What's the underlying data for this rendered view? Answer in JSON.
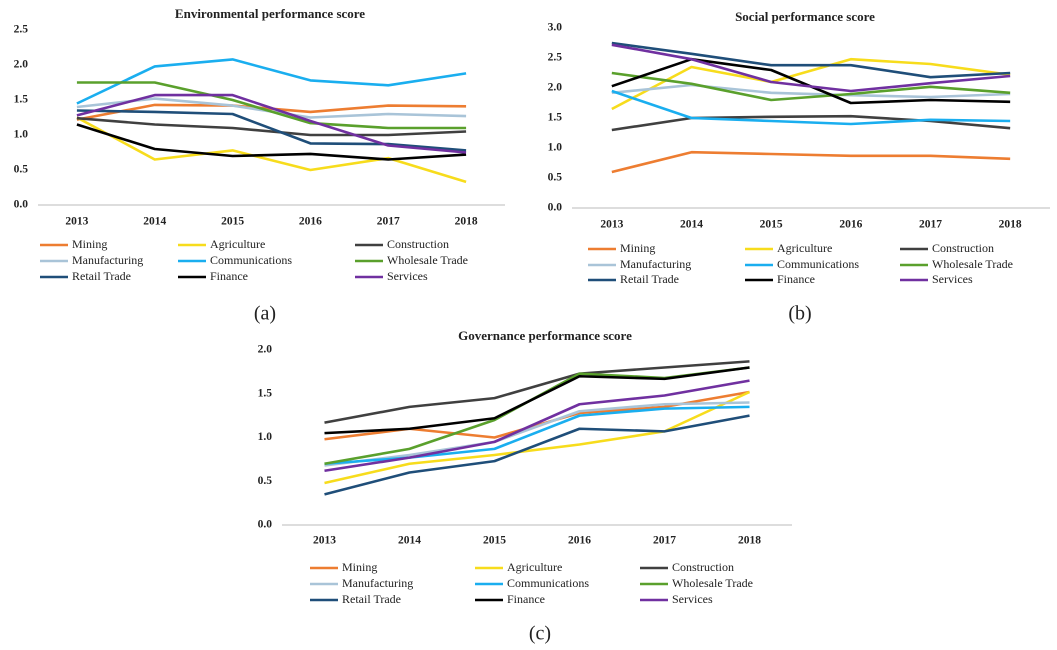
{
  "chart_data": [
    {
      "type": "line",
      "title": "Environmental performance score",
      "caption": "(a)",
      "categories": [
        "2013",
        "2014",
        "2015",
        "2016",
        "2017",
        "2018"
      ],
      "ylim": [
        0,
        2.5
      ],
      "yticks": [
        {
          "value": 0,
          "label": "0.0"
        },
        0.5,
        {
          "value": 1,
          "label": "1.0"
        },
        1.5,
        {
          "value": 2,
          "label": "2.0"
        },
        2.5
      ],
      "grid": false,
      "series": [
        {
          "name": "Mining",
          "color": "#ed7d31",
          "values": [
            1.22,
            1.43,
            1.42,
            1.33,
            1.42,
            1.41
          ]
        },
        {
          "name": "Agriculture",
          "color": "#f7dc1c",
          "values": [
            1.25,
            0.65,
            0.78,
            0.5,
            0.67,
            0.33
          ]
        },
        {
          "name": "Construction",
          "color": "#404040",
          "values": [
            1.24,
            1.15,
            1.1,
            1.0,
            1.0,
            1.05
          ]
        },
        {
          "name": "Manufacturing",
          "color": "#a9c4d8",
          "values": [
            1.4,
            1.52,
            1.42,
            1.25,
            1.3,
            1.27
          ]
        },
        {
          "name": "Communications",
          "color": "#1aaeef",
          "values": [
            1.45,
            1.98,
            2.08,
            1.78,
            1.71,
            1.88
          ]
        },
        {
          "name": "Wholesale Trade",
          "color": "#5aa02c",
          "values": [
            1.75,
            1.75,
            1.5,
            1.17,
            1.1,
            1.1
          ]
        },
        {
          "name": "Retail Trade",
          "color": "#1f4e79",
          "values": [
            1.35,
            1.33,
            1.3,
            0.88,
            0.87,
            0.78
          ]
        },
        {
          "name": "Finance",
          "color": "#000000",
          "values": [
            1.15,
            0.8,
            0.7,
            0.73,
            0.65,
            0.72
          ]
        },
        {
          "name": "Services",
          "color": "#7030a0",
          "values": [
            1.28,
            1.57,
            1.57,
            1.2,
            0.85,
            0.75
          ]
        }
      ]
    },
    {
      "type": "line",
      "title": "Social performance score",
      "caption": "(b)",
      "categories": [
        "2013",
        "2014",
        "2015",
        "2016",
        "2017",
        "2018"
      ],
      "ylim": [
        0,
        3
      ],
      "yticks": [
        {
          "value": 0,
          "label": "0.0"
        },
        0.5,
        {
          "value": 1,
          "label": "1.0"
        },
        1.5,
        {
          "value": 2,
          "label": "2.0"
        },
        2.5,
        {
          "value": 3,
          "label": "3.0"
        }
      ],
      "grid": false,
      "series": [
        {
          "name": "Mining",
          "color": "#ed7d31",
          "values": [
            0.6,
            0.93,
            0.9,
            0.87,
            0.87,
            0.82
          ]
        },
        {
          "name": "Agriculture",
          "color": "#f7dc1c",
          "values": [
            1.65,
            2.35,
            2.1,
            2.48,
            2.4,
            2.22
          ]
        },
        {
          "name": "Construction",
          "color": "#404040",
          "values": [
            1.3,
            1.5,
            1.52,
            1.53,
            1.45,
            1.33
          ]
        },
        {
          "name": "Manufacturing",
          "color": "#a9c4d8",
          "values": [
            1.92,
            2.05,
            1.92,
            1.88,
            1.85,
            1.9
          ]
        },
        {
          "name": "Communications",
          "color": "#1aaeef",
          "values": [
            1.95,
            1.5,
            1.45,
            1.4,
            1.47,
            1.45
          ]
        },
        {
          "name": "Wholesale Trade",
          "color": "#5aa02c",
          "values": [
            2.25,
            2.07,
            1.8,
            1.9,
            2.02,
            1.92
          ]
        },
        {
          "name": "Retail Trade",
          "color": "#1f4e79",
          "values": [
            2.75,
            2.57,
            2.38,
            2.38,
            2.18,
            2.25
          ]
        },
        {
          "name": "Finance",
          "color": "#000000",
          "values": [
            2.03,
            2.48,
            2.3,
            1.75,
            1.8,
            1.77
          ]
        },
        {
          "name": "Services",
          "color": "#7030a0",
          "values": [
            2.72,
            2.48,
            2.1,
            1.95,
            2.08,
            2.2
          ]
        }
      ]
    },
    {
      "type": "line",
      "title": "Governance performance score",
      "caption": "(c)",
      "categories": [
        "2013",
        "2014",
        "2015",
        "2016",
        "2017",
        "2018"
      ],
      "ylim": [
        0,
        2
      ],
      "yticks": [
        {
          "value": 0,
          "label": "0.0"
        },
        0.5,
        {
          "value": 1,
          "label": "1.0"
        },
        1.5,
        {
          "value": 2,
          "label": "2.0"
        }
      ],
      "grid": false,
      "series": [
        {
          "name": "Mining",
          "color": "#ed7d31",
          "values": [
            0.98,
            1.1,
            1.0,
            1.28,
            1.35,
            1.52
          ]
        },
        {
          "name": "Agriculture",
          "color": "#f7dc1c",
          "values": [
            0.48,
            0.7,
            0.8,
            0.92,
            1.07,
            1.52
          ]
        },
        {
          "name": "Construction",
          "color": "#404040",
          "values": [
            1.17,
            1.35,
            1.45,
            1.73,
            1.8,
            1.87
          ]
        },
        {
          "name": "Manufacturing",
          "color": "#a9c4d8",
          "values": [
            0.68,
            0.8,
            0.95,
            1.3,
            1.38,
            1.4
          ]
        },
        {
          "name": "Communications",
          "color": "#1aaeef",
          "values": [
            0.7,
            0.77,
            0.87,
            1.25,
            1.33,
            1.35
          ]
        },
        {
          "name": "Wholesale Trade",
          "color": "#5aa02c",
          "values": [
            0.7,
            0.87,
            1.2,
            1.73,
            1.68,
            1.8
          ]
        },
        {
          "name": "Retail Trade",
          "color": "#1f4e79",
          "values": [
            0.35,
            0.6,
            0.73,
            1.1,
            1.07,
            1.25
          ]
        },
        {
          "name": "Finance",
          "color": "#000000",
          "values": [
            1.05,
            1.1,
            1.22,
            1.7,
            1.67,
            1.8
          ]
        },
        {
          "name": "Services",
          "color": "#7030a0",
          "values": [
            0.62,
            0.77,
            0.95,
            1.38,
            1.48,
            1.65
          ]
        }
      ]
    }
  ]
}
